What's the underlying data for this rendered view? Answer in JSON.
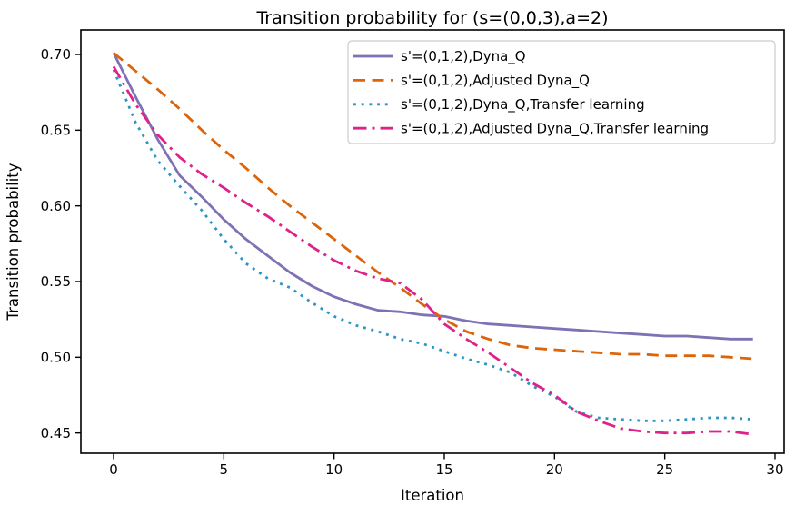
{
  "title": "Transition probability for (s=(0,0,3),a=2)",
  "chart_data": {
    "type": "line",
    "title": "Transition probability for (s=(0,0,3),a=2)",
    "xlabel": "Iteration",
    "ylabel": "Transition probability",
    "x_ticks": [
      0,
      5,
      10,
      15,
      20,
      25,
      30
    ],
    "y_ticks": [
      0.45,
      0.5,
      0.55,
      0.6,
      0.65,
      0.7
    ],
    "xlim": [
      -1.48,
      30.41
    ],
    "ylim": [
      0.4365,
      0.7165
    ],
    "grid": false,
    "legend_position": "upper right inside",
    "background": "#ffffff",
    "axis_color": "#000000",
    "x": [
      0,
      1,
      2,
      3,
      4,
      5,
      6,
      7,
      8,
      9,
      10,
      11,
      12,
      13,
      14,
      15,
      16,
      17,
      18,
      19,
      20,
      21,
      22,
      23,
      24,
      25,
      26,
      27,
      28,
      29
    ],
    "series": [
      {
        "name": "s'=(0,1,2),Dyna_Q",
        "color": "#7E72B5",
        "style": "solid",
        "values": [
          0.701,
          0.672,
          0.644,
          0.62,
          0.606,
          0.591,
          0.578,
          0.567,
          0.556,
          0.547,
          0.54,
          0.535,
          0.531,
          0.53,
          0.528,
          0.527,
          0.524,
          0.522,
          0.521,
          0.52,
          0.519,
          0.518,
          0.517,
          0.516,
          0.515,
          0.514,
          0.514,
          0.513,
          0.512,
          0.512
        ]
      },
      {
        "name": "s'=(0,1,2),Adjusted Dyna_Q",
        "color": "#DC640A",
        "style": "dashed",
        "values": [
          0.701,
          0.689,
          0.677,
          0.664,
          0.65,
          0.637,
          0.625,
          0.612,
          0.6,
          0.589,
          0.578,
          0.567,
          0.556,
          0.546,
          0.535,
          0.525,
          0.517,
          0.512,
          0.508,
          0.506,
          0.505,
          0.504,
          0.503,
          0.502,
          0.502,
          0.501,
          0.501,
          0.501,
          0.5,
          0.499
        ]
      },
      {
        "name": "s'=(0,1,2),Dyna_Q,Transfer learning",
        "color": "#2D95C5",
        "style": "dotted",
        "values": [
          0.69,
          0.655,
          0.63,
          0.613,
          0.597,
          0.578,
          0.562,
          0.552,
          0.546,
          0.536,
          0.527,
          0.521,
          0.517,
          0.512,
          0.509,
          0.504,
          0.499,
          0.495,
          0.49,
          0.481,
          0.474,
          0.464,
          0.46,
          0.459,
          0.458,
          0.458,
          0.459,
          0.46,
          0.46,
          0.459
        ]
      },
      {
        "name": "s'=(0,1,2),Adjusted Dyna_Q,Transfer learning",
        "color": "#E0218A",
        "style": "dashdot",
        "values": [
          0.692,
          0.667,
          0.647,
          0.632,
          0.621,
          0.612,
          0.602,
          0.593,
          0.583,
          0.573,
          0.564,
          0.557,
          0.552,
          0.549,
          0.538,
          0.522,
          0.512,
          0.503,
          0.493,
          0.483,
          0.475,
          0.464,
          0.458,
          0.453,
          0.451,
          0.45,
          0.45,
          0.451,
          0.451,
          0.449
        ]
      }
    ]
  }
}
